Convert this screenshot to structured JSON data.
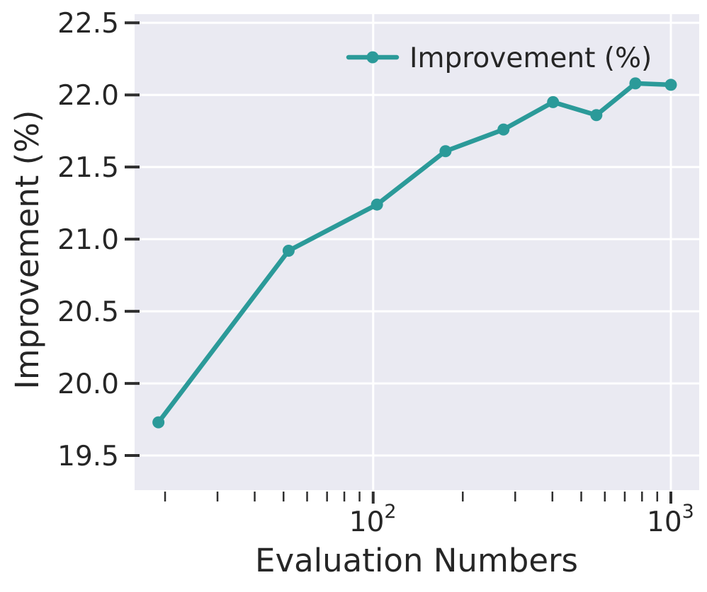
{
  "chart_data": {
    "type": "line",
    "title": "",
    "xlabel": "Evaluation Numbers",
    "ylabel": "Improvement (%)",
    "x_scale": "log",
    "x": [
      19,
      52,
      103,
      175,
      274,
      402,
      562,
      760,
      1000
    ],
    "series": [
      {
        "name": "Improvement (%)",
        "values": [
          19.73,
          20.92,
          21.24,
          21.61,
          21.76,
          21.95,
          21.86,
          22.08,
          22.07
        ],
        "color": "#2b9a99",
        "marker": "circle",
        "line_width": 6.5,
        "marker_radius": 8.5
      }
    ],
    "xlim": [
      15.8,
      1245
    ],
    "ylim": [
      19.26,
      22.56
    ],
    "yticks": {
      "values": [
        19.5,
        20.0,
        20.5,
        21.0,
        21.5,
        22.0,
        22.5
      ],
      "labels": [
        "19.5",
        "20.0",
        "20.5",
        "21.0",
        "21.5",
        "22.0",
        "22.5"
      ]
    },
    "xticks_major": [
      {
        "value": 100,
        "base": "10",
        "exponent": "2"
      },
      {
        "value": 1000,
        "base": "10",
        "exponent": "3"
      }
    ],
    "xticks_minor": [
      20,
      30,
      40,
      50,
      60,
      70,
      80,
      90,
      200,
      300,
      400,
      500,
      600,
      700,
      800,
      900
    ],
    "grid": true,
    "legend": {
      "position": "upper right",
      "frame": false
    },
    "colors": {
      "figure_background": "#ffffff",
      "plot_background": "#eaeaf2",
      "grid": "#ffffff",
      "text": "#262626",
      "tick": "#2f2f2f"
    }
  }
}
